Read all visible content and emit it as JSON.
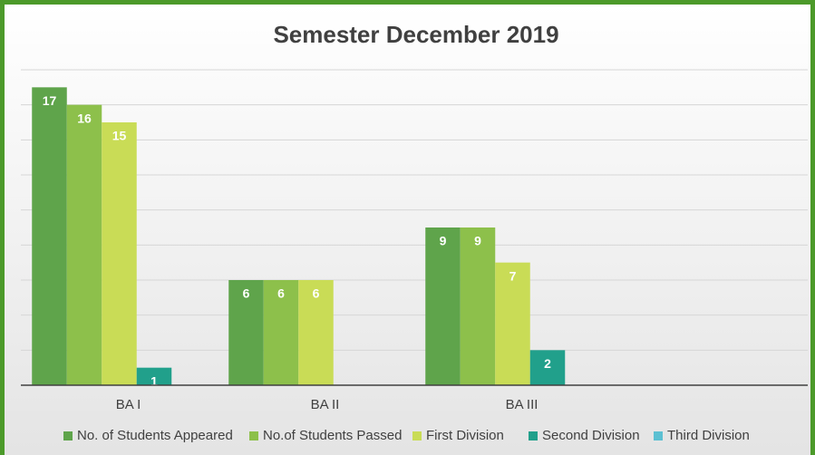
{
  "chart_data": {
    "type": "bar",
    "title": "Semester December 2019",
    "categories": [
      "BA I",
      "BA II",
      "BA III",
      null
    ],
    "series": [
      {
        "name": "No. of Students Appeared",
        "color": "#5fa44b",
        "values": [
          17,
          6,
          9,
          null
        ]
      },
      {
        "name": "No.of Students Passed",
        "color": "#8dc04b",
        "values": [
          16,
          6,
          9,
          null
        ]
      },
      {
        "name": "First Division",
        "color": "#c9dc56",
        "values": [
          15,
          6,
          7,
          null
        ]
      },
      {
        "name": "Second Division",
        "color": "#21a08b",
        "values": [
          1,
          null,
          2,
          null
        ]
      },
      {
        "name": "Third Division",
        "color": "#5cc0d2",
        "values": [
          null,
          null,
          null,
          null
        ]
      }
    ],
    "ylim": [
      0,
      18
    ],
    "yticks": [
      0,
      2,
      4,
      6,
      8,
      10,
      12,
      14,
      16,
      18
    ],
    "grid": true,
    "legend": "bottom"
  }
}
